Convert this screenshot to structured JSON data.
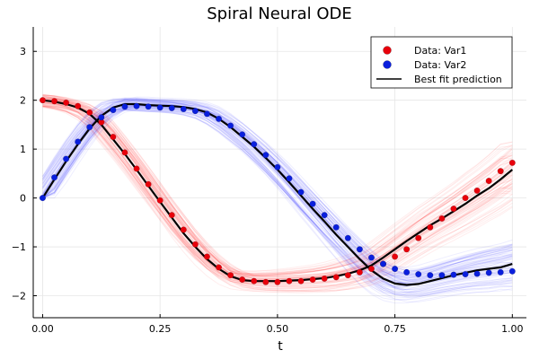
{
  "chart_data": {
    "type": "line",
    "title": "Spiral Neural ODE",
    "xlabel": "t",
    "ylabel": "",
    "xlim": [
      -0.02,
      1.03
    ],
    "ylim": [
      -2.45,
      3.5
    ],
    "xticks": [
      0.0,
      0.25,
      0.5,
      0.75,
      1.0
    ],
    "xtick_labels": [
      "0.00",
      "0.25",
      "0.50",
      "0.75",
      "1.00"
    ],
    "yticks": [
      -2,
      -1,
      0,
      1,
      2,
      3
    ],
    "ytick_labels": [
      "−2",
      "−1",
      "0",
      "1",
      "2",
      "3"
    ],
    "grid": true,
    "legend_position": "top-right",
    "legend": [
      {
        "label": "Data: Var1",
        "kind": "marker",
        "color": "#e8000b"
      },
      {
        "label": "Data: Var2",
        "kind": "marker",
        "color": "#0a1fdd"
      },
      {
        "label": "Best fit prediction",
        "kind": "line",
        "color": "#000000"
      }
    ],
    "x": [
      0.0,
      0.025,
      0.05,
      0.075,
      0.1,
      0.125,
      0.15,
      0.175,
      0.2,
      0.225,
      0.25,
      0.275,
      0.3,
      0.325,
      0.35,
      0.375,
      0.4,
      0.425,
      0.45,
      0.475,
      0.5,
      0.525,
      0.55,
      0.575,
      0.6,
      0.625,
      0.65,
      0.675,
      0.7,
      0.725,
      0.75,
      0.775,
      0.8,
      0.825,
      0.85,
      0.875,
      0.9,
      0.925,
      0.95,
      0.975,
      1.0
    ],
    "series": [
      {
        "name": "Data: Var1",
        "kind": "scatter",
        "color": "#e8000b",
        "values": [
          2.0,
          1.98,
          1.95,
          1.88,
          1.75,
          1.55,
          1.25,
          0.93,
          0.6,
          0.28,
          -0.05,
          -0.35,
          -0.65,
          -0.95,
          -1.2,
          -1.42,
          -1.58,
          -1.67,
          -1.7,
          -1.72,
          -1.72,
          -1.7,
          -1.7,
          -1.67,
          -1.65,
          -1.62,
          -1.58,
          -1.52,
          -1.45,
          -1.35,
          -1.2,
          -1.05,
          -0.82,
          -0.6,
          -0.42,
          -0.22,
          0.0,
          0.15,
          0.35,
          0.55,
          0.72
        ]
      },
      {
        "name": "Data: Var2",
        "kind": "scatter",
        "color": "#0a1fdd",
        "values": [
          0.0,
          0.42,
          0.8,
          1.15,
          1.45,
          1.65,
          1.8,
          1.87,
          1.88,
          1.87,
          1.85,
          1.84,
          1.82,
          1.78,
          1.72,
          1.62,
          1.48,
          1.3,
          1.1,
          0.88,
          0.63,
          0.4,
          0.12,
          -0.12,
          -0.35,
          -0.6,
          -0.82,
          -1.05,
          -1.22,
          -1.35,
          -1.45,
          -1.52,
          -1.56,
          -1.58,
          -1.58,
          -1.57,
          -1.56,
          -1.55,
          -1.53,
          -1.52,
          -1.5
        ]
      },
      {
        "name": "Best fit prediction Var1",
        "kind": "line",
        "color": "#000000",
        "values": [
          2.0,
          1.97,
          1.92,
          1.85,
          1.72,
          1.5,
          1.2,
          0.9,
          0.58,
          0.25,
          -0.08,
          -0.4,
          -0.72,
          -1.0,
          -1.25,
          -1.45,
          -1.6,
          -1.68,
          -1.7,
          -1.7,
          -1.7,
          -1.69,
          -1.68,
          -1.66,
          -1.64,
          -1.6,
          -1.55,
          -1.48,
          -1.38,
          -1.22,
          -1.05,
          -0.88,
          -0.72,
          -0.56,
          -0.42,
          -0.27,
          -0.12,
          0.05,
          0.2,
          0.38,
          0.58
        ]
      },
      {
        "name": "Best fit prediction Var2",
        "kind": "line",
        "color": "#000000",
        "values": [
          0.0,
          0.38,
          0.75,
          1.1,
          1.42,
          1.68,
          1.85,
          1.92,
          1.92,
          1.9,
          1.89,
          1.88,
          1.86,
          1.82,
          1.75,
          1.62,
          1.45,
          1.25,
          1.05,
          0.82,
          0.58,
          0.32,
          0.05,
          -0.22,
          -0.48,
          -0.75,
          -1.0,
          -1.25,
          -1.48,
          -1.65,
          -1.75,
          -1.78,
          -1.76,
          -1.7,
          -1.64,
          -1.58,
          -1.53,
          -1.48,
          -1.45,
          -1.42,
          -1.35
        ]
      }
    ],
    "ensemble": {
      "count": 70,
      "var1_color": "#ff0000",
      "var2_color": "#0000ff"
    }
  }
}
